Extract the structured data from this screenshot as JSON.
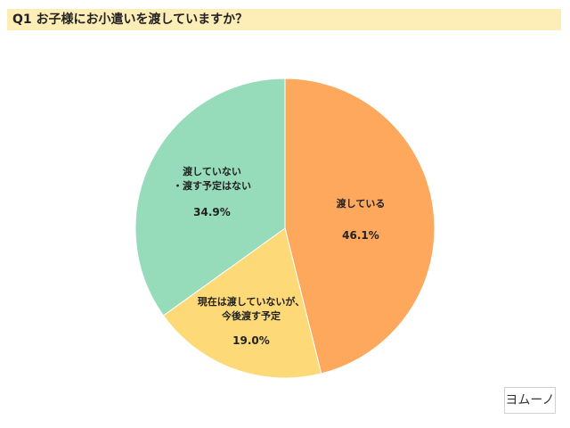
{
  "chart_data": {
    "type": "pie",
    "title": "Q1 お子様にお小遣いを渡していますか？",
    "slices": [
      {
        "label_lines": [
          "渡している"
        ],
        "value": 46.1,
        "display": "46.1%",
        "color": "#fda85c"
      },
      {
        "label_lines": [
          "現在は渡していないが、",
          "今後渡す予定"
        ],
        "value": 19.0,
        "display": "19.0%",
        "color": "#fdd977"
      },
      {
        "label_lines": [
          "渡していない",
          "・渡す予定はない"
        ],
        "value": 34.9,
        "display": "34.9%",
        "color": "#96dcbb"
      }
    ],
    "start": "12 o'clock",
    "direction": "clockwise",
    "legend": "none"
  },
  "logo": {
    "text": "ヨムーノ"
  }
}
